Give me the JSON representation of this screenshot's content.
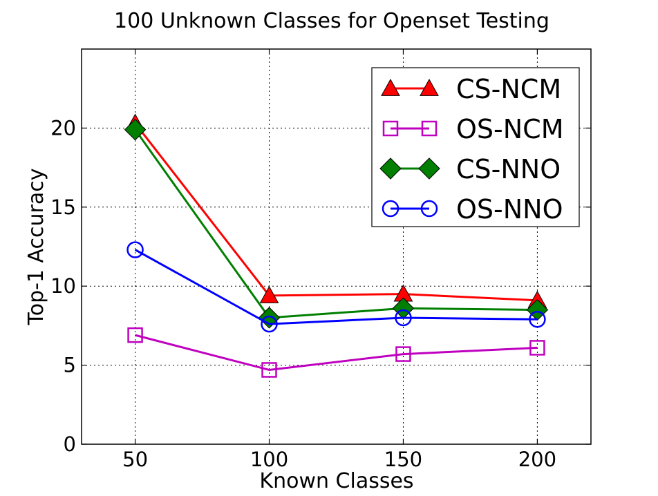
{
  "chart_data": {
    "type": "line",
    "title": "100 Unknown Classes for Openset Testing",
    "xlabel": "Known Classes",
    "ylabel": "Top-1 Accuracy",
    "x": [
      50,
      100,
      150,
      200
    ],
    "xlim": [
      30,
      220
    ],
    "ylim": [
      0,
      25
    ],
    "xticks": [
      50,
      100,
      150,
      200
    ],
    "yticks": [
      0,
      5,
      10,
      15,
      20
    ],
    "grid": true,
    "legend_position": "top-right",
    "series": [
      {
        "name": "CS-NCM",
        "values": [
          20.3,
          9.4,
          9.5,
          9.1
        ],
        "color": "#ff0000",
        "marker": "triangle",
        "marker_fill": "#ff0000"
      },
      {
        "name": "OS-NCM",
        "values": [
          6.9,
          4.7,
          5.7,
          6.1
        ],
        "color": "#bf00bf",
        "marker": "square",
        "marker_fill": "none"
      },
      {
        "name": "CS-NNO",
        "values": [
          19.9,
          8.0,
          8.6,
          8.5
        ],
        "color": "#007f00",
        "marker": "diamond",
        "marker_fill": "#007f00"
      },
      {
        "name": "OS-NNO",
        "values": [
          12.3,
          7.6,
          8.0,
          7.9
        ],
        "color": "#0000ff",
        "marker": "circle",
        "marker_fill": "none"
      }
    ]
  }
}
